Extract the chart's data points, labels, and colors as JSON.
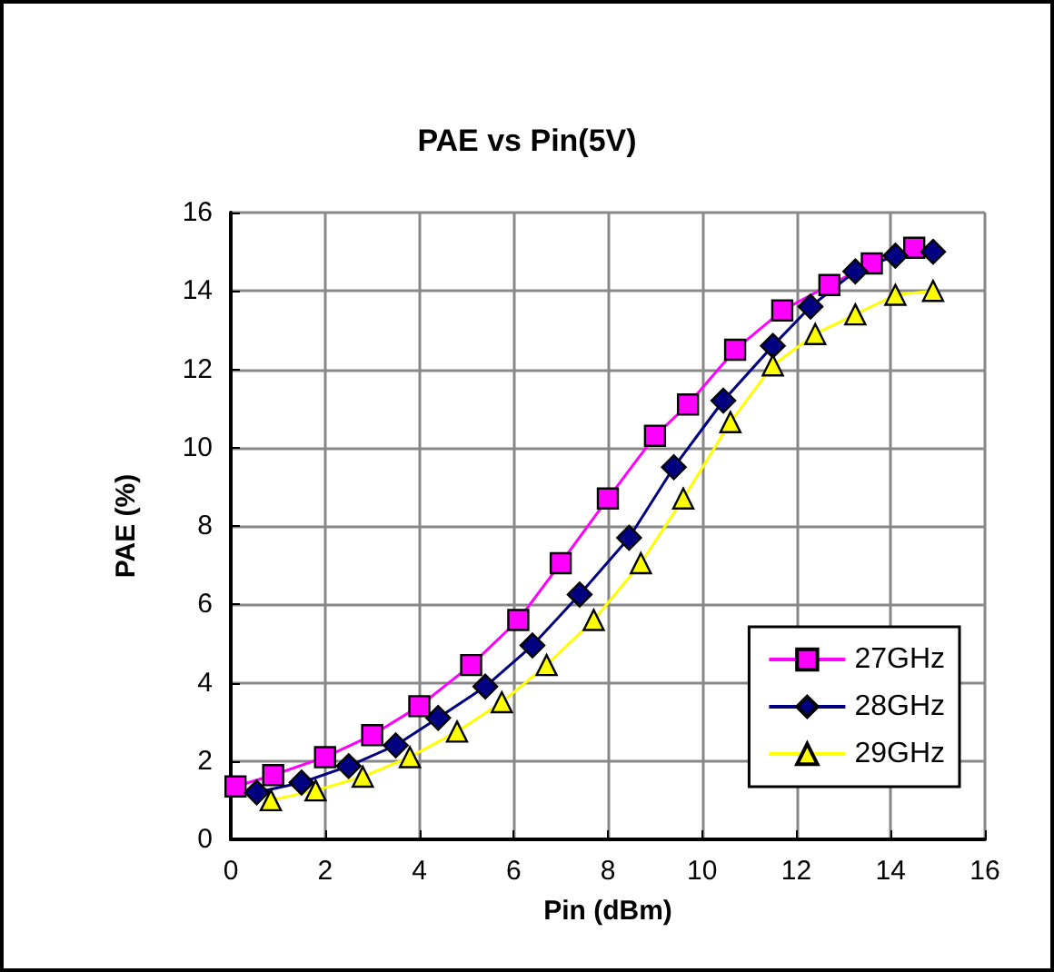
{
  "chart_data": {
    "type": "line",
    "title": "PAE vs Pin(5V)",
    "xlabel": "Pin (dBm)",
    "ylabel": "PAE (%)",
    "xlim": [
      0,
      16
    ],
    "xticks": [
      0,
      2,
      4,
      6,
      8,
      10,
      12,
      14,
      16
    ],
    "ylim": [
      0,
      16
    ],
    "yticks": [
      0,
      2,
      4,
      6,
      8,
      10,
      12,
      14,
      16
    ],
    "grid": true,
    "legend": "bottom right",
    "line_style": "solid",
    "series": [
      {
        "name": "27GHz",
        "color": "#ff00ff",
        "marker": "square",
        "x": [
          0.1,
          0.9,
          2.0,
          3.0,
          4.0,
          5.1,
          6.1,
          7.0,
          8.0,
          9.0,
          9.7,
          10.7,
          11.7,
          12.7,
          13.6,
          14.5
        ],
        "values": [
          1.35,
          1.64,
          2.1,
          2.66,
          3.4,
          4.45,
          5.6,
          7.05,
          8.7,
          10.3,
          11.1,
          12.5,
          13.5,
          14.15,
          14.7,
          15.1
        ]
      },
      {
        "name": "28GHz",
        "color": "#000080",
        "marker": "diamond",
        "x": [
          0.55,
          1.5,
          2.5,
          3.5,
          4.4,
          5.4,
          6.4,
          7.4,
          8.45,
          9.4,
          10.45,
          11.5,
          12.3,
          13.25,
          14.1,
          14.9
        ],
        "values": [
          1.2,
          1.45,
          1.87,
          2.4,
          3.1,
          3.9,
          4.95,
          6.25,
          7.7,
          9.5,
          11.2,
          12.6,
          13.6,
          14.5,
          14.9,
          15.0
        ]
      },
      {
        "name": "29GHz",
        "color": "#ffff00",
        "marker": "triangle",
        "x": [
          0.85,
          1.8,
          2.8,
          3.8,
          4.8,
          5.75,
          6.7,
          7.7,
          8.7,
          9.6,
          10.6,
          11.5,
          12.4,
          13.25,
          14.1,
          14.9
        ],
        "values": [
          1.0,
          1.25,
          1.6,
          2.1,
          2.75,
          3.5,
          4.45,
          5.6,
          7.05,
          8.7,
          10.65,
          12.1,
          12.9,
          13.4,
          13.9,
          14.0
        ]
      }
    ]
  }
}
